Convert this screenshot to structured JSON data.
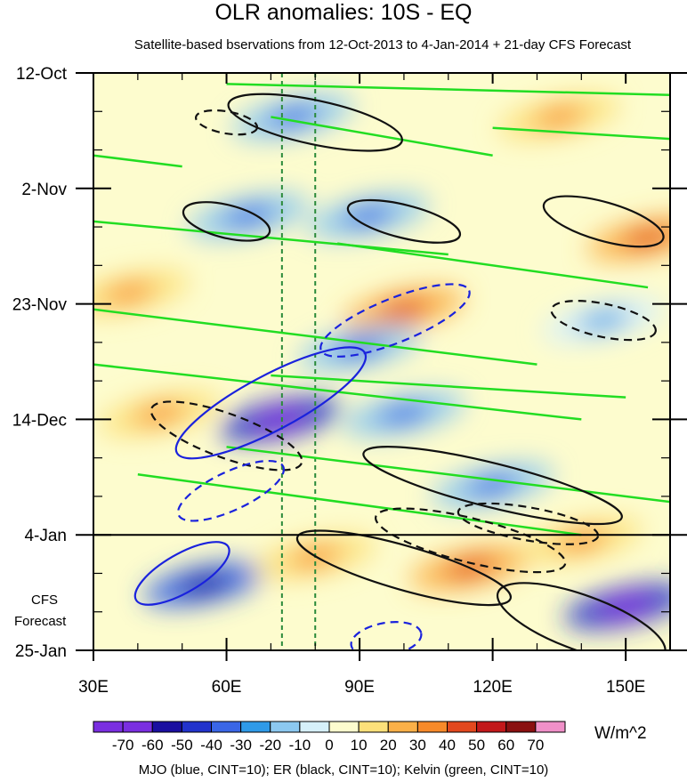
{
  "chart_data": {
    "type": "heatmap",
    "title": "OLR anomalies: 10S - EQ",
    "subtitle": "Satellite-based bservations from 12-Oct-2013 to 4-Jan-2014 + 21-day CFS Forecast",
    "x_ticks": [
      "30E",
      "60E",
      "90E",
      "120E",
      "150E"
    ],
    "x_tick_values": [
      30,
      60,
      90,
      120,
      150
    ],
    "xlim": [
      30,
      160
    ],
    "y_ticks": [
      "12-Oct",
      "2-Nov",
      "23-Nov",
      "14-Dec",
      "4-Jan",
      "25-Jan"
    ],
    "y_tick_days": [
      0,
      21,
      42,
      63,
      84,
      105
    ],
    "ylim_days": [
      0,
      105
    ],
    "forecast_start_day": 84,
    "forecast_label_1": "CFS",
    "forecast_label_2": "Forecast",
    "reference_longitudes": [
      72.5,
      80
    ],
    "colorbar": {
      "labels": [
        "-70",
        "-60",
        "-50",
        "-40",
        "-30",
        "-20",
        "-10",
        "0",
        "10",
        "20",
        "30",
        "40",
        "50",
        "60",
        "70"
      ],
      "colors": [
        "#7a2ee0",
        "#1a0fa0",
        "#2233cc",
        "#3a66e6",
        "#2f9ae8",
        "#8cc8f0",
        "#d6f0fa",
        "#fdfcce",
        "#fde07a",
        "#fbb048",
        "#f78a2a",
        "#e2481e",
        "#c2181a",
        "#8a1010",
        "#f090c8"
      ],
      "units": "W/m^2"
    },
    "contour_legend": "MJO (blue, CINT=10); ER (black, CINT=10); Kelvin (green, CINT=10)",
    "anomaly_centers": [
      {
        "lon": 72,
        "day": 63,
        "value": -70
      },
      {
        "lon": 65,
        "day": 26,
        "value": -40
      },
      {
        "lon": 92,
        "day": 26,
        "value": -40
      },
      {
        "lon": 75,
        "day": 8,
        "value": -40
      },
      {
        "lon": 100,
        "day": 43,
        "value": 40
      },
      {
        "lon": 115,
        "day": 90,
        "value": 40
      },
      {
        "lon": 120,
        "day": 75,
        "value": -40
      },
      {
        "lon": 55,
        "day": 93,
        "value": -60
      },
      {
        "lon": 150,
        "day": 97,
        "value": -70
      },
      {
        "lon": 155,
        "day": 30,
        "value": 40
      },
      {
        "lon": 140,
        "day": 85,
        "value": 30
      },
      {
        "lon": 80,
        "day": 88,
        "value": 30
      },
      {
        "lon": 38,
        "day": 40,
        "value": 30
      },
      {
        "lon": 135,
        "day": 8,
        "value": 30
      },
      {
        "lon": 45,
        "day": 62,
        "value": 30
      },
      {
        "lon": 100,
        "day": 62,
        "value": -40
      },
      {
        "lon": 145,
        "day": 45,
        "value": -30
      },
      {
        "lon": 90,
        "day": 50,
        "value": -40
      }
    ],
    "mjo_contours": [
      {
        "lon": 70,
        "day": 60,
        "rx": 24,
        "ry": 5,
        "rot": -28,
        "dash": false
      },
      {
        "lon": 50,
        "day": 91,
        "rx": 12,
        "ry": 3.5,
        "rot": -30,
        "dash": false
      },
      {
        "lon": 61,
        "day": 76,
        "rx": 13,
        "ry": 3.5,
        "rot": -25,
        "dash": true
      },
      {
        "lon": 98,
        "day": 45,
        "rx": 18,
        "ry": 4,
        "rot": -22,
        "dash": true
      },
      {
        "lon": 96,
        "day": 103,
        "rx": 8,
        "ry": 3,
        "rot": -10,
        "dash": true
      }
    ],
    "er_contours": [
      {
        "lon": 80,
        "day": 9,
        "rx": 20,
        "ry": 4,
        "rot": 12,
        "dash": false
      },
      {
        "lon": 60,
        "day": 27,
        "rx": 10,
        "ry": 3,
        "rot": 14,
        "dash": false
      },
      {
        "lon": 100,
        "day": 27,
        "rx": 13,
        "ry": 3,
        "rot": 14,
        "dash": false
      },
      {
        "lon": 145,
        "day": 27,
        "rx": 14,
        "ry": 3.5,
        "rot": 16,
        "dash": false
      },
      {
        "lon": 120,
        "day": 75,
        "rx": 30,
        "ry": 4,
        "rot": 14,
        "dash": false
      },
      {
        "lon": 100,
        "day": 90,
        "rx": 25,
        "ry": 4,
        "rot": 16,
        "dash": false
      },
      {
        "lon": 60,
        "day": 66,
        "rx": 18,
        "ry": 4,
        "rot": 20,
        "dash": true
      },
      {
        "lon": 115,
        "day": 85,
        "rx": 22,
        "ry": 4,
        "rot": 14,
        "dash": true
      },
      {
        "lon": 140,
        "day": 100,
        "rx": 20,
        "ry": 5,
        "rot": 20,
        "dash": false
      },
      {
        "lon": 60,
        "day": 9,
        "rx": 7,
        "ry": 2,
        "rot": 10,
        "dash": true
      },
      {
        "lon": 145,
        "day": 45,
        "rx": 12,
        "ry": 3,
        "rot": 12,
        "dash": true
      },
      {
        "lon": 128,
        "day": 82,
        "rx": 16,
        "ry": 3,
        "rot": 10,
        "dash": true
      }
    ],
    "kelvin_lines": [
      {
        "lon1": 30,
        "day1": 53,
        "lon2": 140,
        "day2": 63
      },
      {
        "lon1": 30,
        "day1": 43,
        "lon2": 130,
        "day2": 53
      },
      {
        "lon1": 30,
        "day1": 27,
        "lon2": 110,
        "day2": 33
      },
      {
        "lon1": 60,
        "day1": 2,
        "lon2": 160,
        "day2": 4
      },
      {
        "lon1": 70,
        "day1": 8,
        "lon2": 120,
        "day2": 15
      },
      {
        "lon1": 60,
        "day1": 68,
        "lon2": 160,
        "day2": 78
      },
      {
        "lon1": 40,
        "day1": 73,
        "lon2": 140,
        "day2": 84
      },
      {
        "lon1": 85,
        "day1": 31,
        "lon2": 155,
        "day2": 39
      },
      {
        "lon1": 120,
        "day1": 10,
        "lon2": 160,
        "day2": 12
      },
      {
        "lon1": 30,
        "day1": 15,
        "lon2": 50,
        "day2": 17
      },
      {
        "lon1": 70,
        "day1": 55,
        "lon2": 150,
        "day2": 59
      }
    ]
  }
}
